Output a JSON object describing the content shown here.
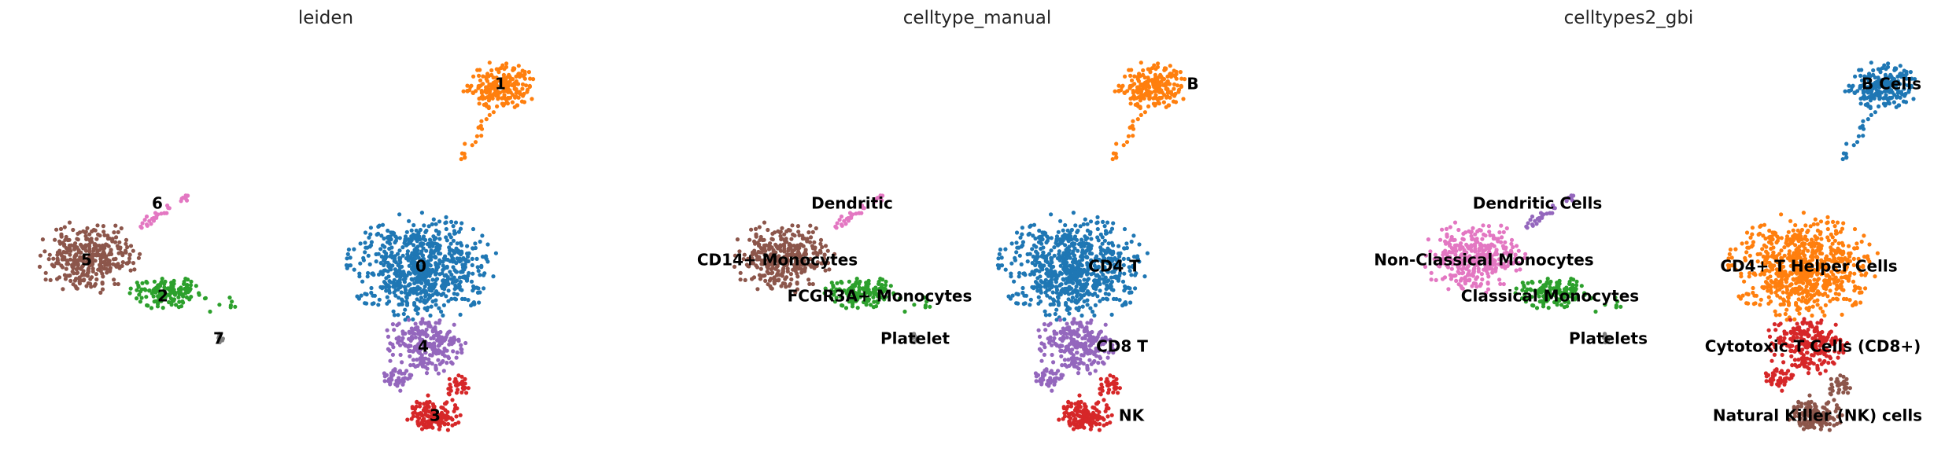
{
  "chart_data": [
    {
      "type": "scatter",
      "title": "leiden",
      "axes_visible": false,
      "legend": "on data",
      "clusters": [
        {
          "label": "0",
          "color": "#1f77b4"
        },
        {
          "label": "1",
          "color": "#ff7f0e"
        },
        {
          "label": "2",
          "color": "#2ca02c"
        },
        {
          "label": "3",
          "color": "#d62728"
        },
        {
          "label": "4",
          "color": "#9467bd"
        },
        {
          "label": "5",
          "color": "#8c564b"
        },
        {
          "label": "6",
          "color": "#e377c2"
        },
        {
          "label": "7",
          "color": "#7f7f7f"
        }
      ]
    },
    {
      "type": "scatter",
      "title": "celltype_manual",
      "axes_visible": false,
      "legend": "on data",
      "clusters": [
        {
          "label": "CD4 T",
          "color": "#1f77b4"
        },
        {
          "label": "B",
          "color": "#ff7f0e"
        },
        {
          "label": "FCGR3A+ Monocytes",
          "color": "#2ca02c"
        },
        {
          "label": "NK",
          "color": "#d62728"
        },
        {
          "label": "CD8 T",
          "color": "#9467bd"
        },
        {
          "label": "CD14+ Monocytes",
          "color": "#8c564b"
        },
        {
          "label": "Dendritic",
          "color": "#e377c2"
        },
        {
          "label": "Platelet",
          "color": "#7f7f7f"
        }
      ]
    },
    {
      "type": "scatter",
      "title": "celltypes2_gbi",
      "axes_visible": false,
      "legend": "on data",
      "clusters": [
        {
          "label": "B Cells",
          "color": "#1f77b4"
        },
        {
          "label": "CD4+ T Helper Cells",
          "color": "#ff7f0e"
        },
        {
          "label": "Classical Monocytes",
          "color": "#2ca02c"
        },
        {
          "label": "Cytotoxic T Cells (CD8+)",
          "color": "#d62728"
        },
        {
          "label": "Dendritic Cells",
          "color": "#9467bd"
        },
        {
          "label": "Natural Killer (NK) cells",
          "color": "#8c564b"
        },
        {
          "label": "Non-Classical Monocytes",
          "color": "#e377c2"
        },
        {
          "label": "Platelets",
          "color": "#7f7f7f"
        }
      ]
    }
  ]
}
